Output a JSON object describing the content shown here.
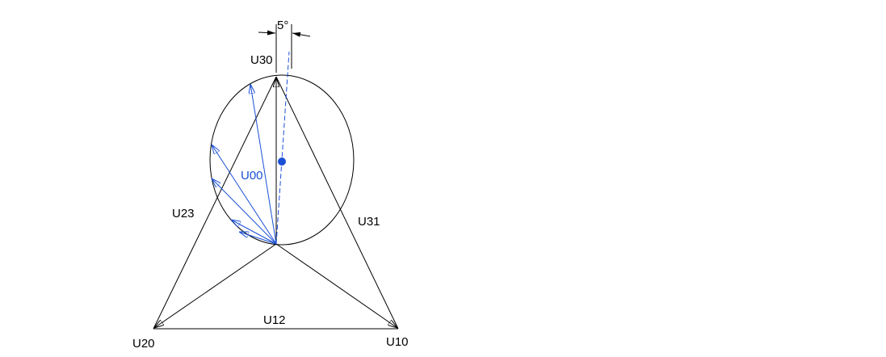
{
  "labels": {
    "u30": "U30",
    "u20": "U20",
    "u10": "U10",
    "u12": "U12",
    "u23": "U23",
    "u31": "U31",
    "u00": "U00",
    "angle": "5°"
  },
  "colors": {
    "black": "#000000",
    "blue": "#1a4fd6"
  }
}
